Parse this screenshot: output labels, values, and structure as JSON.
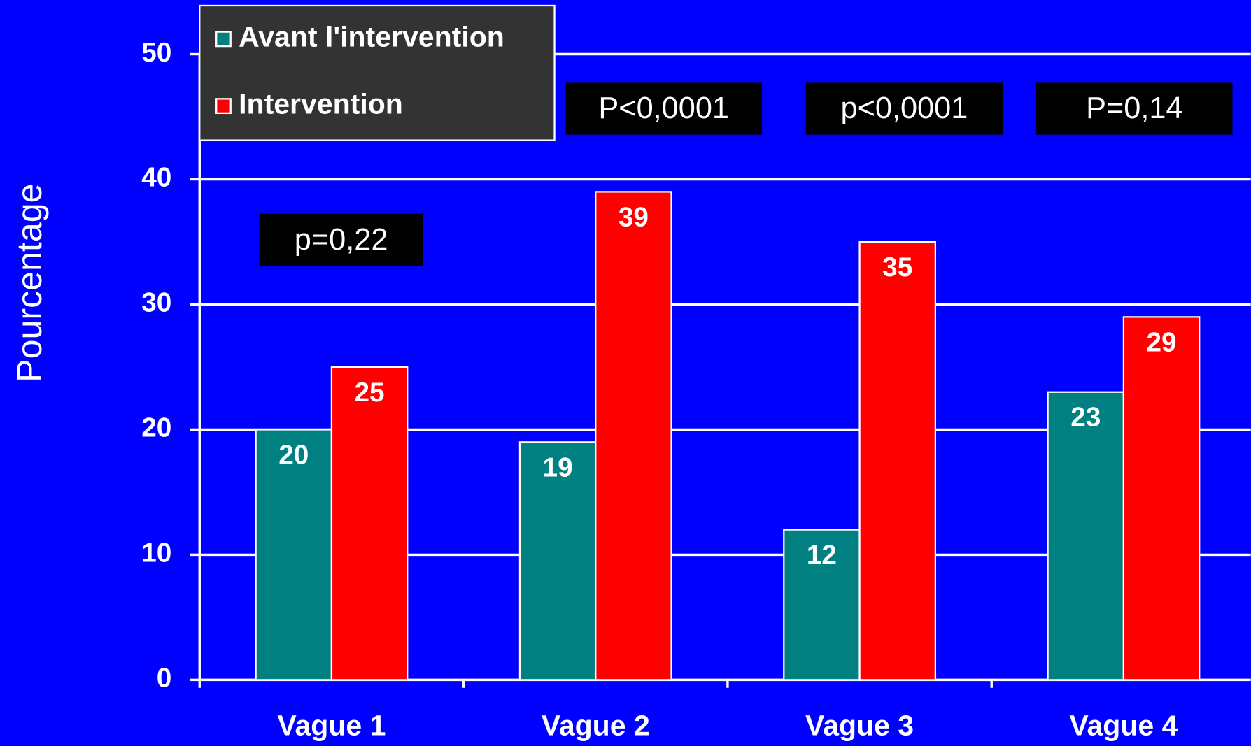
{
  "chart_data": {
    "type": "bar",
    "y_label": "Pourcentage",
    "categories": [
      "Vague 1",
      "Vague 2",
      "Vague 3",
      "Vague 4"
    ],
    "series": [
      {
        "name": "Avant l'intervention",
        "color": "#008080",
        "values": [
          20,
          19,
          12,
          23
        ]
      },
      {
        "name": "Intervention",
        "color": "#ff0000",
        "values": [
          25,
          39,
          35,
          29
        ]
      }
    ],
    "ylim": [
      0,
      50
    ],
    "yticks": [
      0,
      10,
      20,
      30,
      40,
      50
    ],
    "grid": true,
    "legend": "top-left",
    "annotations": [
      "p=0,22",
      "P<0,0001",
      "p<0,0001",
      "P=0,14"
    ]
  }
}
